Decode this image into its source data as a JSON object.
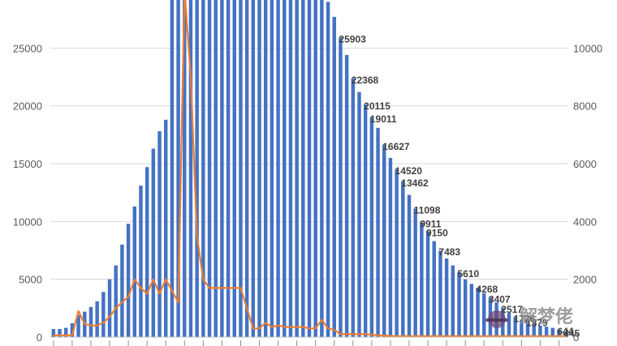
{
  "chart_data": {
    "type": "bar",
    "title": "",
    "xlabel": "",
    "ylabel": "",
    "ylim": [
      0,
      30000
    ],
    "y2lim": [
      0,
      12000
    ],
    "yticks": [
      0,
      5000,
      10000,
      15000,
      20000,
      25000
    ],
    "y2ticks": [
      0,
      2000,
      4000,
      6000,
      8000,
      10000
    ],
    "grid": true,
    "legend": "none",
    "colors": {
      "bars": "#4472c4",
      "line": "#ed7d31"
    },
    "series": [
      {
        "type": "bar",
        "axis": "left",
        "values": [
          700,
          700,
          800,
          1200,
          1900,
          2200,
          2600,
          3100,
          3900,
          5000,
          6200,
          8000,
          9800,
          11300,
          13100,
          14700,
          16300,
          17800,
          18800,
          30000,
          30000,
          30000,
          30000,
          30000,
          30000,
          30000,
          30000,
          30000,
          30000,
          30000,
          30000,
          30000,
          30000,
          30000,
          30000,
          30000,
          30000,
          30000,
          30000,
          30000,
          30000,
          30000,
          30000,
          30000,
          29000,
          27700,
          25903,
          24400,
          22368,
          21200,
          20115,
          19011,
          18100,
          16627,
          15500,
          14520,
          13462,
          12300,
          11098,
          9911,
          9150,
          8300,
          7483,
          6800,
          6200,
          5610,
          5000,
          4600,
          4268,
          3800,
          3407,
          3000,
          2517,
          2100,
          1726,
          1500,
          1379,
          1200,
          1000,
          900,
          800,
          644,
          445
        ]
      },
      {
        "type": "line",
        "axis": "right",
        "values": [
          60,
          60,
          60,
          60,
          900,
          450,
          400,
          400,
          500,
          700,
          1000,
          1200,
          1400,
          2000,
          1700,
          1500,
          2000,
          1500,
          2000,
          1600,
          1200,
          12000,
          9000,
          3500,
          2000,
          1700,
          1700,
          1700,
          1700,
          1700,
          1700,
          1000,
          300,
          300,
          500,
          350,
          400,
          350,
          350,
          350,
          350,
          300,
          300,
          600,
          300,
          250,
          100,
          100,
          100,
          100,
          100,
          80,
          60,
          50,
          40,
          30,
          30,
          30,
          30,
          30,
          30,
          30,
          30,
          30,
          30,
          30,
          30,
          30,
          30,
          30,
          30,
          30,
          30,
          30,
          30,
          30,
          30,
          30,
          30,
          30,
          30,
          30,
          30
        ]
      }
    ],
    "data_labels": [
      {
        "index": 46,
        "text": "25903"
      },
      {
        "index": 48,
        "text": "22368"
      },
      {
        "index": 50,
        "text": "20115"
      },
      {
        "index": 51,
        "text": "19011"
      },
      {
        "index": 53,
        "text": "16627"
      },
      {
        "index": 55,
        "text": "14520"
      },
      {
        "index": 56,
        "text": "13462"
      },
      {
        "index": 58,
        "text": "11098"
      },
      {
        "index": 59,
        "text": "9911"
      },
      {
        "index": 60,
        "text": "9150"
      },
      {
        "index": 62,
        "text": "7483"
      },
      {
        "index": 65,
        "text": "5610"
      },
      {
        "index": 68,
        "text": "4268"
      },
      {
        "index": 70,
        "text": "3407"
      },
      {
        "index": 72,
        "text": "2517"
      },
      {
        "index": 74,
        "text": "1726"
      },
      {
        "index": 76,
        "text": "1379"
      },
      {
        "index": 81,
        "text": "644"
      },
      {
        "index": 82,
        "text": "445"
      }
    ]
  },
  "watermark": {
    "text": "解梦佬",
    "icon": "hat-logo-icon"
  }
}
